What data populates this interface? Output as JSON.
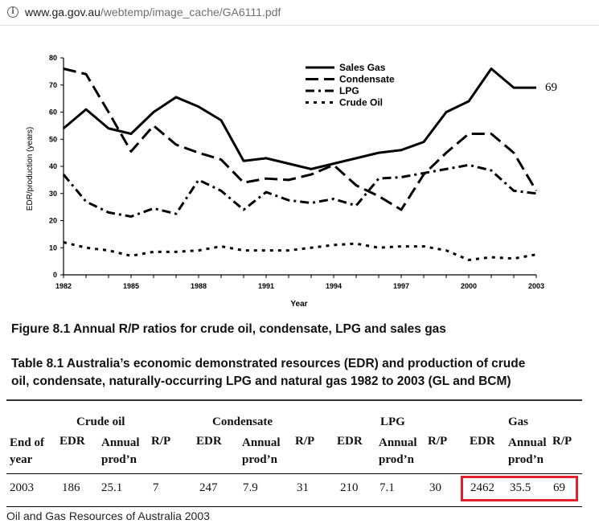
{
  "browser": {
    "url_host": "www.ga.gov.au",
    "url_path": "/webtemp/image_cache/GA6111.pdf",
    "info_icon": "info-icon"
  },
  "chart_data": {
    "type": "line",
    "xlabel": "Year",
    "ylabel": "EDR/production (years)",
    "xlim": [
      1982,
      2003
    ],
    "ylim": [
      0,
      80
    ],
    "x_ticks": [
      "1982",
      "1985",
      "1988",
      "1991",
      "1994",
      "1997",
      "2000",
      "2003"
    ],
    "y_ticks": [
      "0",
      "10",
      "20",
      "30",
      "40",
      "50",
      "60",
      "70",
      "80"
    ],
    "grid": false,
    "legend_position": "top-center",
    "annotation": "69",
    "x": [
      1982,
      1983,
      1984,
      1985,
      1986,
      1987,
      1988,
      1989,
      1990,
      1991,
      1992,
      1993,
      1994,
      1995,
      1996,
      1997,
      1998,
      1999,
      2000,
      2001,
      2002,
      2003
    ],
    "series": [
      {
        "name": "Sales Gas",
        "style": "solid",
        "values": [
          54,
          61,
          54,
          52,
          60,
          65.5,
          62,
          57,
          42,
          43,
          41,
          39,
          41,
          43,
          45,
          46,
          49,
          60,
          64,
          76,
          69,
          69
        ]
      },
      {
        "name": "Condensate",
        "style": "dash",
        "values": [
          76,
          74,
          60,
          45.5,
          55,
          48,
          45,
          42.5,
          34,
          35.5,
          35,
          37,
          40.5,
          33,
          29,
          24,
          37,
          45,
          52,
          52,
          45,
          31
        ]
      },
      {
        "name": "LPG",
        "style": "dashdot",
        "values": [
          37,
          27,
          23,
          21.5,
          24.5,
          22.5,
          35,
          31,
          24,
          30.5,
          27.5,
          26.5,
          28,
          25.5,
          35.5,
          36,
          37.5,
          39,
          40.5,
          38.5,
          31,
          30
        ]
      },
      {
        "name": "Crude Oil",
        "style": "dot",
        "values": [
          12,
          10,
          9,
          7,
          8.5,
          8.5,
          9,
          10.5,
          9,
          9,
          9,
          10,
          11,
          11.5,
          10,
          10.5,
          10.5,
          9,
          5.5,
          6.5,
          6,
          7.5
        ]
      }
    ]
  },
  "figure_caption": "Figure 8.1 Annual R/P ratios for crude oil, condensate, LPG and sales gas",
  "table": {
    "title_line1": "Table 8.1 Australia’s economic demonstrated resources (EDR) and production of crude",
    "title_line2": "oil, condensate, naturally-occurring LPG and natural gas 1982 to 2003 (GL and BCM)",
    "groups": {
      "crude_oil": "Crude oil",
      "condensate": "Condensate",
      "lpg": "LPG",
      "gas": "Gas"
    },
    "headers": {
      "end_of_year_1": "End of",
      "end_of_year_2": "year",
      "edr": "EDR",
      "annual_1": "Annual",
      "annual_2": "prod’n",
      "rp": "R/P"
    },
    "row": {
      "year": "2003",
      "crude_edr": "186",
      "crude_prod": "25.1",
      "crude_rp": "7",
      "cond_edr": "247",
      "cond_prod": "7.9",
      "cond_rp": "31",
      "lpg_edr": "210",
      "lpg_prod": "7.1",
      "lpg_rp": "30",
      "gas_edr": "2462",
      "gas_prod": "35.5",
      "gas_rp": "69"
    },
    "highlight_color": "#e0202a"
  },
  "footer": "Oil and Gas Resources of Australia 2003"
}
